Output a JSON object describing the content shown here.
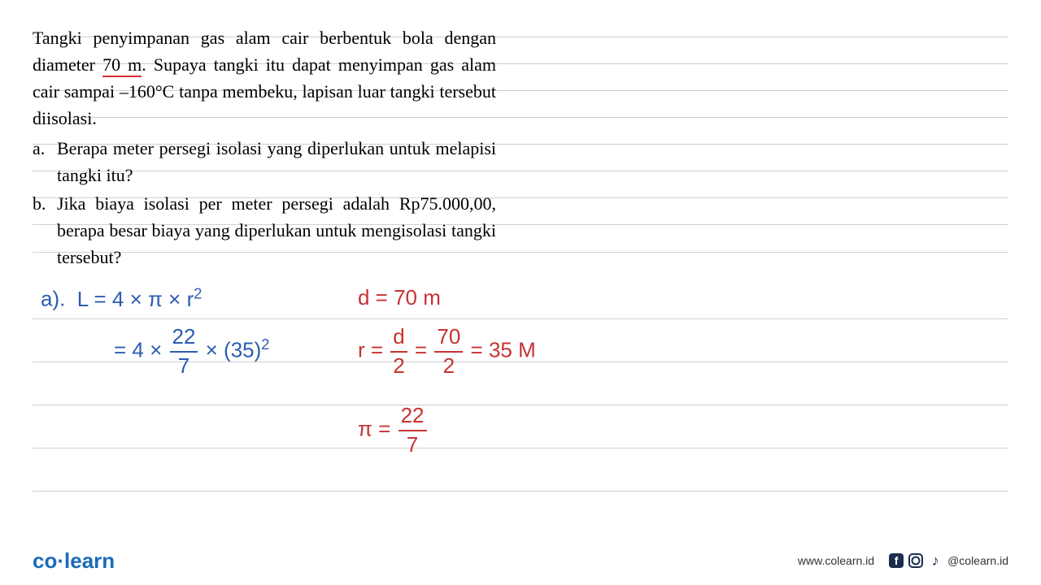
{
  "problem": {
    "intro_part1": "Tangki penyimpanan gas alam cair berbentuk bola dengan diameter ",
    "diameter_underlined": "70 m",
    "intro_part2": ". Supaya tangki itu dapat menyimpan gas alam cair sampai –160°C tanpa membeku, lapisan luar tangki tersebut diisolasi.",
    "items": [
      {
        "marker": "a.",
        "text": "Berapa meter persegi isolasi yang diperlukan untuk melapisi tangki itu?"
      },
      {
        "marker": "b.",
        "text": "Jika biaya isolasi per meter persegi adalah Rp75.000,00, berapa besar biaya yang diperlukan untuk mengisolasi tangki tersebut?"
      }
    ]
  },
  "working": {
    "a_label": "a).",
    "line1_lhs": "L = 4 × π × r",
    "line1_exp": "2",
    "line2_eq": "= 4 × ",
    "frac1_num": "22",
    "frac1_den": "7",
    "line2_mid": " × (35)",
    "line2_exp": "2",
    "d_eq": "d = 70 m",
    "r_eq1": "r = ",
    "r_frac1_num": "d",
    "r_frac1_den": "2",
    "r_eq2": " = ",
    "r_frac2_num": "70",
    "r_frac2_den": "2",
    "r_eq3": " = 35 M",
    "pi_eq": "π = ",
    "pi_num": "22",
    "pi_den": "7"
  },
  "footer": {
    "logo_co": "co",
    "logo_dot": "·",
    "logo_learn": "learn",
    "url": "www.colearn.id",
    "handle": "@colearn.id",
    "fb_glyph": "f"
  },
  "ruled_line_positions": [
    45,
    78,
    111,
    144,
    177,
    210,
    243,
    276,
    310,
    392,
    445,
    498,
    551,
    604
  ],
  "colors": {
    "blue_ink": "#2a5db0",
    "red_ink": "#c83232",
    "underline_red": "#d93030",
    "logo_blue": "#1a6bb8",
    "rule_grey": "#d0d0d0",
    "text_black": "#000000",
    "icon_dark": "#1a2d4d"
  }
}
